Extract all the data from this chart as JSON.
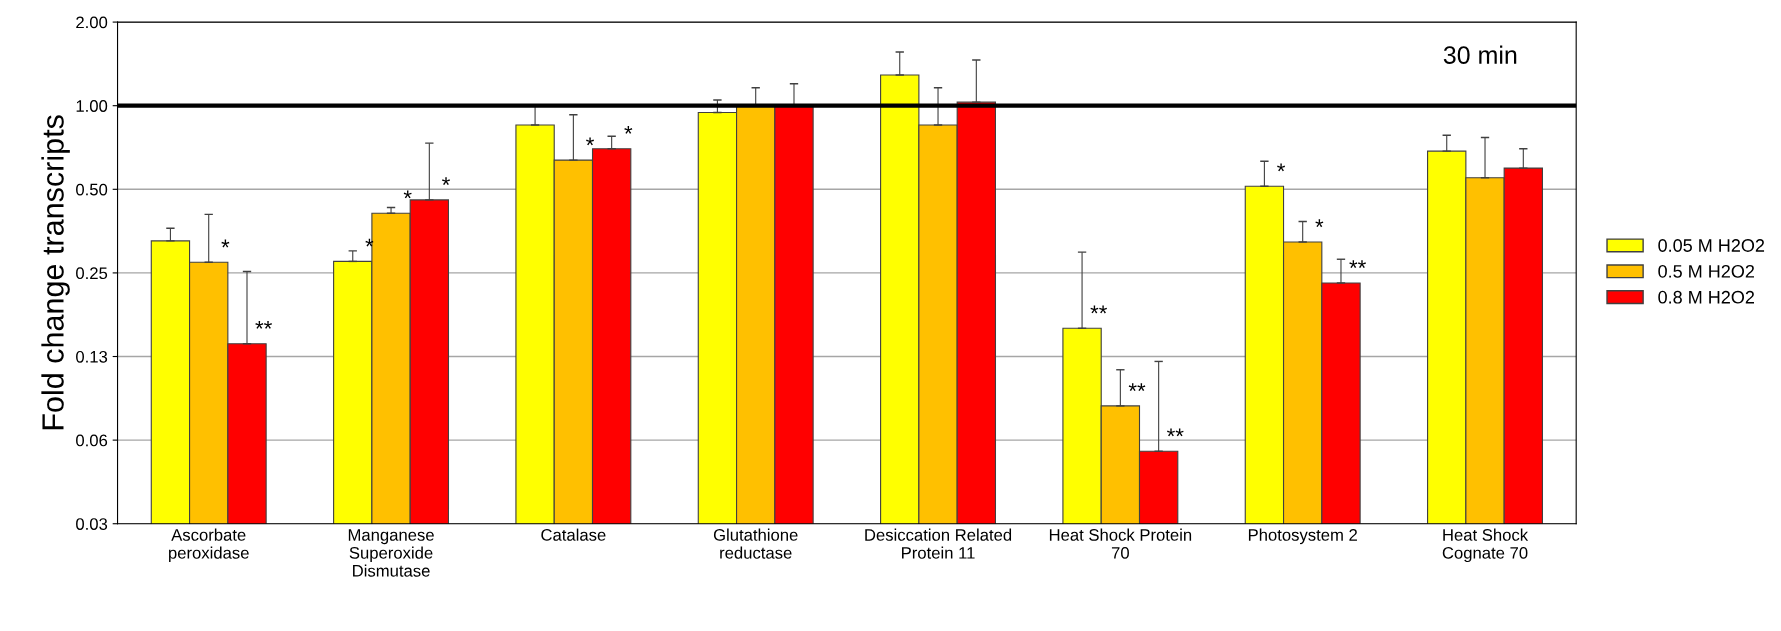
{
  "chart_data": {
    "type": "bar",
    "ylabel": "Fold change transcripts",
    "categories": [
      "Ascorbate\nperoxidase",
      "Manganese\nSuperoxide\nDismutase",
      "Catalase",
      "Glutathione\nreductase",
      "Desiccation Related\nProtein 11",
      "Heat Shock Protein\n70",
      "Photosystem 2",
      "Heat Shock\nCognate 70"
    ],
    "series": [
      {
        "name": "0.05 M H2O2",
        "color": "#ffff00",
        "values": [
          0.326,
          0.275,
          0.852,
          0.945,
          1.29,
          0.158,
          0.513,
          0.686
        ],
        "errors": [
          [
            0.326,
            0.362
          ],
          [
            0.275,
            0.3
          ],
          [
            0.852,
            1.0
          ],
          [
            0.945,
            1.048
          ],
          [
            1.29,
            1.56
          ],
          [
            0.158,
            0.297
          ],
          [
            0.513,
            0.631
          ],
          [
            0.686,
            0.783
          ]
        ],
        "value_labels": [
          null,
          "*",
          null,
          null,
          null,
          "**",
          "*",
          null
        ]
      },
      {
        "name": "0.5 M H2O2",
        "color": "#ffc000",
        "values": [
          0.273,
          0.41,
          0.637,
          1.0,
          0.852,
          0.083,
          0.323,
          0.55
        ],
        "errors": [
          [
            0.273,
            0.406
          ],
          [
            0.41,
            0.43
          ],
          [
            0.637,
            0.928
          ],
          [
            1.0,
            1.16
          ],
          [
            0.852,
            1.16
          ],
          [
            0.083,
            0.112
          ],
          [
            0.323,
            0.383
          ],
          [
            0.55,
            0.768
          ]
        ],
        "value_labels": [
          "*",
          "*",
          "*",
          null,
          null,
          "**",
          "*",
          null
        ]
      },
      {
        "name": "0.8 M H2O2",
        "color": "#ff0000",
        "values": [
          0.139,
          0.458,
          0.7,
          1.0,
          1.03,
          0.057,
          0.23,
          0.596
        ],
        "errors": [
          [
            0.139,
            0.253
          ],
          [
            0.458,
            0.733
          ],
          [
            0.7,
            0.776
          ],
          [
            1.0,
            1.2
          ],
          [
            1.03,
            1.46
          ],
          [
            0.057,
            0.12
          ],
          [
            0.23,
            0.28
          ],
          [
            0.596,
            0.7
          ]
        ],
        "value_labels": [
          "**",
          "*",
          "*",
          null,
          null,
          "**",
          "**",
          null
        ]
      }
    ],
    "log": "y",
    "ylim": [
      0.03125,
      2
    ],
    "yticks": [
      {
        "value": 0.03125,
        "label": "0.03"
      },
      {
        "value": 0.0625,
        "label": "0.06"
      },
      {
        "value": 0.125,
        "label": "0.13"
      },
      {
        "value": 0.25,
        "label": "0.25"
      },
      {
        "value": 0.5,
        "label": "0.50"
      },
      {
        "value": 1,
        "label": "1.00"
      },
      {
        "value": 2,
        "label": "2.00"
      }
    ],
    "grid": "y",
    "legend": "right",
    "ref_lines": [
      {
        "axis": "y",
        "value": 1,
        "color": "#000000"
      }
    ],
    "annotations": [
      "30 min"
    ]
  }
}
